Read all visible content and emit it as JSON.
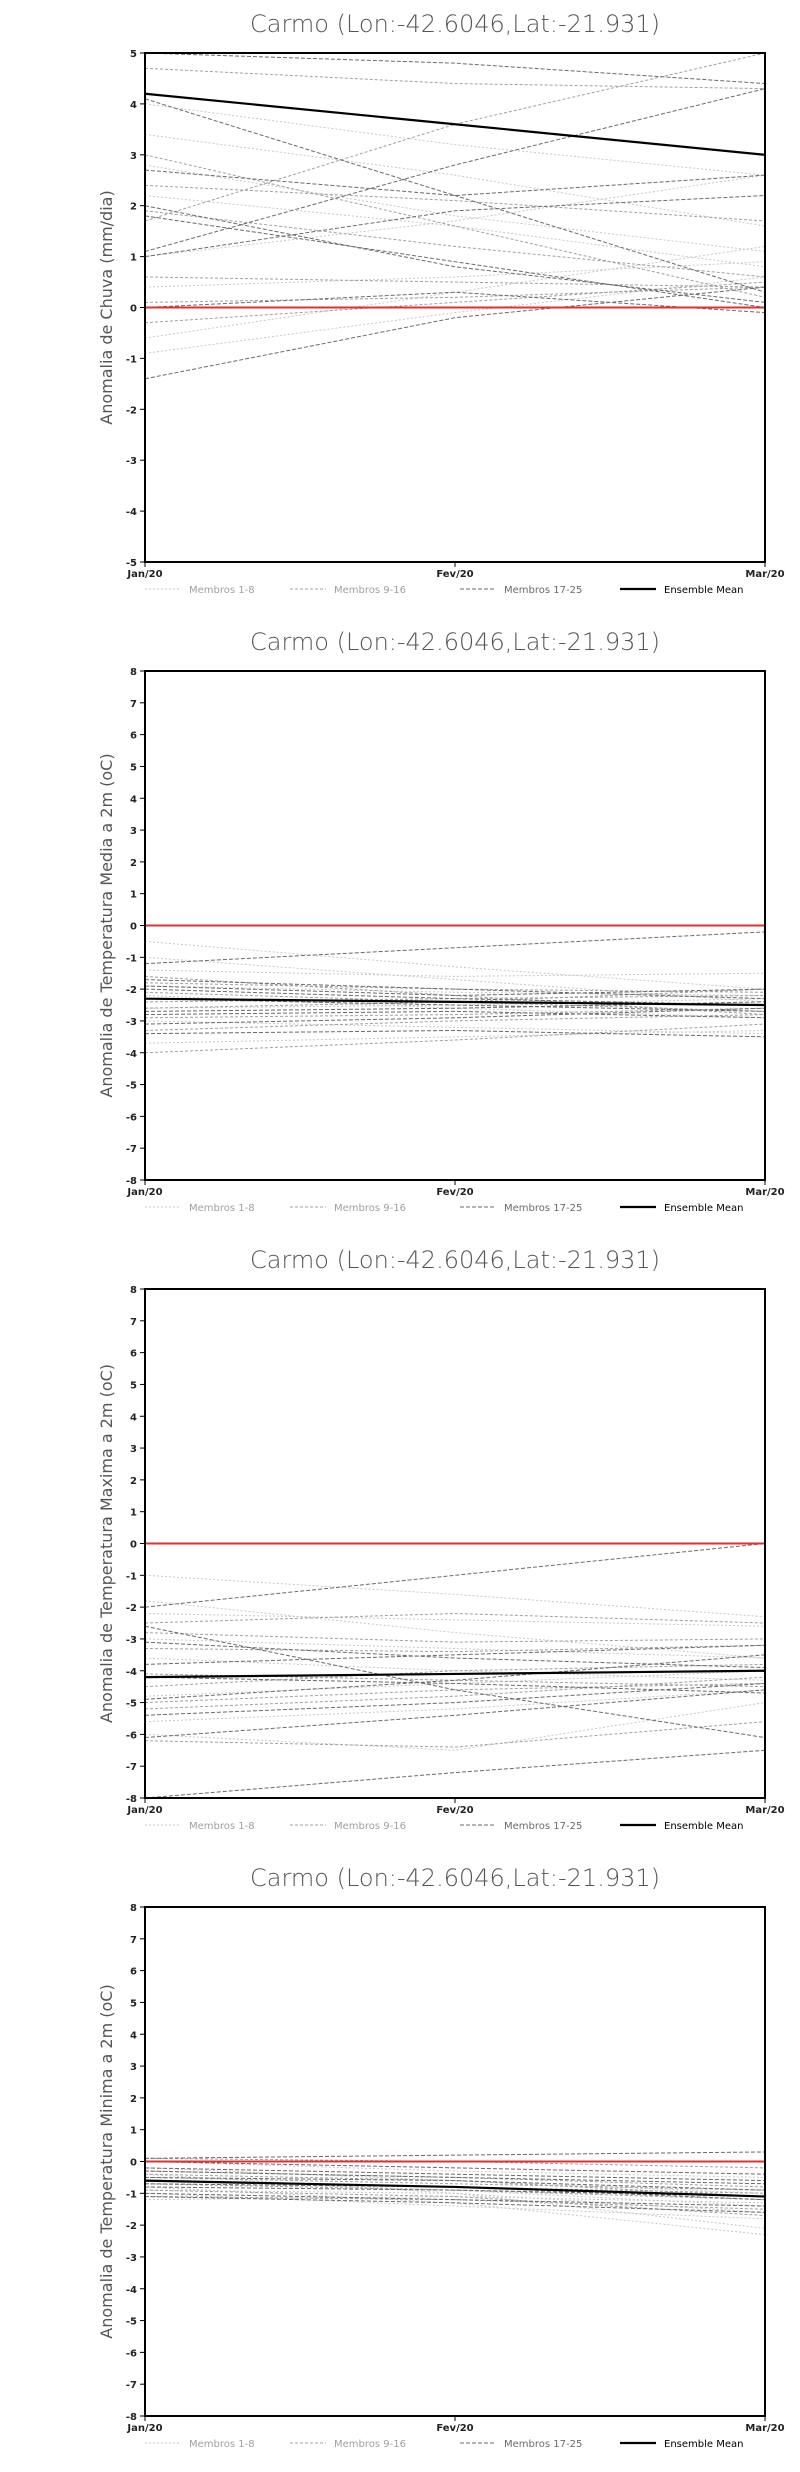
{
  "chart_data": [
    {
      "type": "line",
      "title": "Carmo (Lon:-42.6046,Lat:-21.931)",
      "ylabel": "Anomalia de Chuva (mm/dia)",
      "x": [
        "Jan/20",
        "Fev/20",
        "Mar/20"
      ],
      "ylim": [
        -5,
        5
      ],
      "yticks": [
        -5,
        -4,
        -3,
        -2,
        -1,
        0,
        1,
        2,
        3,
        4,
        5
      ],
      "legend": [
        "Membros 1-8",
        "Membros 9-16",
        "Membros 17-25",
        "Ensemble Mean"
      ],
      "reference_line": {
        "y": 0,
        "color": "#e03030"
      },
      "series": [
        {
          "group": 0,
          "values": [
            3.4,
            2.6,
            1.6
          ]
        },
        {
          "group": 0,
          "values": [
            2.8,
            1.8,
            1.1
          ]
        },
        {
          "group": 0,
          "values": [
            1.0,
            1.7,
            2.6
          ]
        },
        {
          "group": 0,
          "values": [
            4.0,
            3.2,
            2.6
          ]
        },
        {
          "group": 0,
          "values": [
            -0.6,
            0.3,
            1.2
          ]
        },
        {
          "group": 0,
          "values": [
            2.2,
            1.6,
            0.8
          ]
        },
        {
          "group": 0,
          "values": [
            -0.9,
            -0.1,
            0.6
          ]
        },
        {
          "group": 0,
          "values": [
            0.4,
            0.6,
            0.9
          ]
        },
        {
          "group": 1,
          "values": [
            4.7,
            4.4,
            4.3
          ]
        },
        {
          "group": 1,
          "values": [
            1.7,
            3.6,
            5.0
          ]
        },
        {
          "group": 1,
          "values": [
            2.4,
            2.1,
            1.7
          ]
        },
        {
          "group": 1,
          "values": [
            0.1,
            0.2,
            0.4
          ]
        },
        {
          "group": 1,
          "values": [
            3.0,
            1.6,
            0.2
          ]
        },
        {
          "group": 1,
          "values": [
            -0.3,
            0.1,
            0.5
          ]
        },
        {
          "group": 1,
          "values": [
            1.9,
            1.2,
            0.6
          ]
        },
        {
          "group": 1,
          "values": [
            0.6,
            0.5,
            0.4
          ]
        },
        {
          "group": 2,
          "values": [
            4.1,
            2.2,
            0.3
          ]
        },
        {
          "group": 2,
          "values": [
            1.1,
            2.8,
            4.3
          ]
        },
        {
          "group": 2,
          "values": [
            2.7,
            2.2,
            2.6
          ]
        },
        {
          "group": 2,
          "values": [
            -1.4,
            -0.2,
            0.4
          ]
        },
        {
          "group": 2,
          "values": [
            5.0,
            4.8,
            4.4
          ]
        },
        {
          "group": 2,
          "values": [
            1.8,
            0.9,
            0.0
          ]
        },
        {
          "group": 2,
          "values": [
            0.0,
            0.3,
            -0.1
          ]
        },
        {
          "group": 2,
          "values": [
            2.0,
            0.8,
            0.1
          ]
        },
        {
          "group": 2,
          "values": [
            1.0,
            1.9,
            2.2
          ]
        },
        {
          "group": 3,
          "values": [
            4.2,
            3.6,
            3.0
          ]
        }
      ]
    },
    {
      "type": "line",
      "title": "Carmo (Lon:-42.6046,Lat:-21.931)",
      "ylabel": "Anomalia de Temperatura Media a 2m (oC)",
      "x": [
        "Jan/20",
        "Fev/20",
        "Mar/20"
      ],
      "ylim": [
        -8,
        8
      ],
      "yticks": [
        -8,
        -7,
        -6,
        -5,
        -4,
        -3,
        -2,
        -1,
        0,
        1,
        2,
        3,
        4,
        5,
        6,
        7,
        8
      ],
      "legend": [
        "Membros 1-8",
        "Membros 9-16",
        "Membros 17-25",
        "Ensemble Mean"
      ],
      "reference_line": {
        "y": 0,
        "color": "#e03030"
      },
      "series": [
        {
          "group": 0,
          "values": [
            -0.5,
            -1.3,
            -2.0
          ]
        },
        {
          "group": 0,
          "values": [
            -1.0,
            -1.7,
            -2.4
          ]
        },
        {
          "group": 0,
          "values": [
            -2.6,
            -2.5,
            -2.3
          ]
        },
        {
          "group": 0,
          "values": [
            -3.0,
            -3.2,
            -3.4
          ]
        },
        {
          "group": 0,
          "values": [
            -1.9,
            -2.1,
            -2.2
          ]
        },
        {
          "group": 0,
          "values": [
            -3.7,
            -3.5,
            -3.3
          ]
        },
        {
          "group": 0,
          "values": [
            -2.2,
            -2.6,
            -2.9
          ]
        },
        {
          "group": 0,
          "values": [
            -1.4,
            -1.6,
            -1.5
          ]
        },
        {
          "group": 1,
          "values": [
            -1.8,
            -2.0,
            -2.1
          ]
        },
        {
          "group": 1,
          "values": [
            -2.9,
            -2.8,
            -2.6
          ]
        },
        {
          "group": 1,
          "values": [
            -2.4,
            -2.3,
            -2.2
          ]
        },
        {
          "group": 1,
          "values": [
            -3.3,
            -3.0,
            -2.8
          ]
        },
        {
          "group": 1,
          "values": [
            -2.1,
            -2.4,
            -2.7
          ]
        },
        {
          "group": 1,
          "values": [
            -4.0,
            -3.6,
            -3.1
          ]
        },
        {
          "group": 1,
          "values": [
            -2.6,
            -2.4,
            -2.0
          ]
        },
        {
          "group": 1,
          "values": [
            -1.6,
            -2.2,
            -2.8
          ]
        },
        {
          "group": 2,
          "values": [
            -1.2,
            -0.7,
            -0.2
          ]
        },
        {
          "group": 2,
          "values": [
            -2.0,
            -2.3,
            -2.5
          ]
        },
        {
          "group": 2,
          "values": [
            -2.7,
            -2.6,
            -2.4
          ]
        },
        {
          "group": 2,
          "values": [
            -3.1,
            -2.9,
            -2.6
          ]
        },
        {
          "group": 2,
          "values": [
            -1.7,
            -2.0,
            -2.3
          ]
        },
        {
          "group": 2,
          "values": [
            -3.4,
            -3.3,
            -3.5
          ]
        },
        {
          "group": 2,
          "values": [
            -2.3,
            -2.5,
            -2.7
          ]
        },
        {
          "group": 2,
          "values": [
            -2.8,
            -2.7,
            -2.9
          ]
        },
        {
          "group": 2,
          "values": [
            -1.9,
            -2.2,
            -2.0
          ]
        },
        {
          "group": 3,
          "values": [
            -2.3,
            -2.4,
            -2.5
          ]
        }
      ]
    },
    {
      "type": "line",
      "title": "Carmo (Lon:-42.6046,Lat:-21.931)",
      "ylabel": "Anomalia de Temperatura Maxima a 2m (oC)",
      "x": [
        "Jan/20",
        "Fev/20",
        "Mar/20"
      ],
      "ylim": [
        -8,
        8
      ],
      "yticks": [
        -8,
        -7,
        -6,
        -5,
        -4,
        -3,
        -2,
        -1,
        0,
        1,
        2,
        3,
        4,
        5,
        6,
        7,
        8
      ],
      "legend": [
        "Membros 1-8",
        "Membros 9-16",
        "Membros 17-25",
        "Ensemble Mean"
      ],
      "reference_line": {
        "y": 0,
        "color": "#e03030"
      },
      "series": [
        {
          "group": 0,
          "values": [
            -1.0,
            -1.6,
            -2.3
          ]
        },
        {
          "group": 0,
          "values": [
            -6.0,
            -6.5,
            -5.0
          ]
        },
        {
          "group": 0,
          "values": [
            -3.0,
            -3.3,
            -3.6
          ]
        },
        {
          "group": 0,
          "values": [
            -4.8,
            -4.4,
            -4.0
          ]
        },
        {
          "group": 0,
          "values": [
            -2.2,
            -2.4,
            -2.6
          ]
        },
        {
          "group": 0,
          "values": [
            -5.6,
            -5.2,
            -4.6
          ]
        },
        {
          "group": 0,
          "values": [
            -3.6,
            -4.0,
            -4.3
          ]
        },
        {
          "group": 0,
          "values": [
            -1.8,
            -2.8,
            -3.6
          ]
        },
        {
          "group": 1,
          "values": [
            -2.5,
            -2.2,
            -2.5
          ]
        },
        {
          "group": 1,
          "values": [
            -4.1,
            -4.3,
            -4.5
          ]
        },
        {
          "group": 1,
          "values": [
            -5.2,
            -4.8,
            -4.2
          ]
        },
        {
          "group": 1,
          "values": [
            -3.3,
            -3.4,
            -3.2
          ]
        },
        {
          "group": 1,
          "values": [
            -6.2,
            -6.4,
            -5.6
          ]
        },
        {
          "group": 1,
          "values": [
            -4.5,
            -4.0,
            -3.8
          ]
        },
        {
          "group": 1,
          "values": [
            -2.8,
            -3.1,
            -3.0
          ]
        },
        {
          "group": 1,
          "values": [
            -5.0,
            -4.6,
            -4.4
          ]
        },
        {
          "group": 2,
          "values": [
            -2.0,
            -1.0,
            0.0
          ]
        },
        {
          "group": 2,
          "values": [
            -8.0,
            -7.2,
            -6.5
          ]
        },
        {
          "group": 2,
          "values": [
            -2.6,
            -4.6,
            -6.1
          ]
        },
        {
          "group": 2,
          "values": [
            -6.1,
            -5.4,
            -4.6
          ]
        },
        {
          "group": 2,
          "values": [
            -3.8,
            -3.5,
            -3.2
          ]
        },
        {
          "group": 2,
          "values": [
            -5.4,
            -5.0,
            -4.4
          ]
        },
        {
          "group": 2,
          "values": [
            -4.2,
            -4.4,
            -4.7
          ]
        },
        {
          "group": 2,
          "values": [
            -3.1,
            -3.6,
            -3.9
          ]
        },
        {
          "group": 2,
          "values": [
            -4.9,
            -4.3,
            -3.5
          ]
        },
        {
          "group": 3,
          "values": [
            -4.2,
            -4.1,
            -4.0
          ]
        }
      ]
    },
    {
      "type": "line",
      "title": "Carmo (Lon:-42.6046,Lat:-21.931)",
      "ylabel": "Anomalia de Temperatura Minima a 2m (oC)",
      "x": [
        "Jan/20",
        "Fev/20",
        "Mar/20"
      ],
      "ylim": [
        -8,
        8
      ],
      "yticks": [
        -8,
        -7,
        -6,
        -5,
        -4,
        -3,
        -2,
        -1,
        0,
        1,
        2,
        3,
        4,
        5,
        6,
        7,
        8
      ],
      "legend": [
        "Membros 1-8",
        "Membros 9-16",
        "Membros 17-25",
        "Ensemble Mean"
      ],
      "reference_line": {
        "y": 0,
        "color": "#e03030"
      },
      "series": [
        {
          "group": 0,
          "values": [
            -0.4,
            -1.0,
            -2.1
          ]
        },
        {
          "group": 0,
          "values": [
            -1.0,
            -1.4,
            -1.8
          ]
        },
        {
          "group": 0,
          "values": [
            -0.2,
            -0.6,
            -1.0
          ]
        },
        {
          "group": 0,
          "values": [
            -1.2,
            -1.1,
            -1.3
          ]
        },
        {
          "group": 0,
          "values": [
            -0.6,
            -0.9,
            -1.4
          ]
        },
        {
          "group": 0,
          "values": [
            -0.8,
            -1.3,
            -2.3
          ]
        },
        {
          "group": 0,
          "values": [
            0.0,
            -0.3,
            -0.5
          ]
        },
        {
          "group": 0,
          "values": [
            -0.9,
            -1.0,
            -1.6
          ]
        },
        {
          "group": 1,
          "values": [
            -0.5,
            -0.7,
            -0.9
          ]
        },
        {
          "group": 1,
          "values": [
            -1.1,
            -1.2,
            -1.5
          ]
        },
        {
          "group": 1,
          "values": [
            -0.3,
            -0.5,
            -0.8
          ]
        },
        {
          "group": 1,
          "values": [
            -0.7,
            -0.9,
            -1.2
          ]
        },
        {
          "group": 1,
          "values": [
            0.1,
            0.0,
            -0.2
          ]
        },
        {
          "group": 1,
          "values": [
            -0.9,
            -1.1,
            -1.7
          ]
        },
        {
          "group": 1,
          "values": [
            -0.4,
            -0.6,
            -1.1
          ]
        },
        {
          "group": 1,
          "values": [
            -0.6,
            -0.8,
            -1.0
          ]
        },
        {
          "group": 2,
          "values": [
            0.1,
            0.2,
            0.3
          ]
        },
        {
          "group": 2,
          "values": [
            -0.2,
            -0.4,
            -0.6
          ]
        },
        {
          "group": 2,
          "values": [
            -0.8,
            -0.9,
            -1.1
          ]
        },
        {
          "group": 2,
          "values": [
            -0.5,
            -0.6,
            -0.9
          ]
        },
        {
          "group": 2,
          "values": [
            -1.0,
            -1.2,
            -1.4
          ]
        },
        {
          "group": 2,
          "values": [
            -0.3,
            -0.5,
            -0.7
          ]
        },
        {
          "group": 2,
          "values": [
            -0.7,
            -0.8,
            -1.2
          ]
        },
        {
          "group": 2,
          "values": [
            0.0,
            -0.2,
            -0.4
          ]
        },
        {
          "group": 2,
          "values": [
            -1.1,
            -1.3,
            -1.6
          ]
        },
        {
          "group": 3,
          "values": [
            -0.6,
            -0.8,
            -1.1
          ]
        }
      ]
    }
  ],
  "styles": {
    "group_colors": [
      "#c8c8c8",
      "#a0a0a0",
      "#6a6a6a",
      "#000000"
    ],
    "axis_color": "#000000",
    "reference_color": "#e03030"
  }
}
